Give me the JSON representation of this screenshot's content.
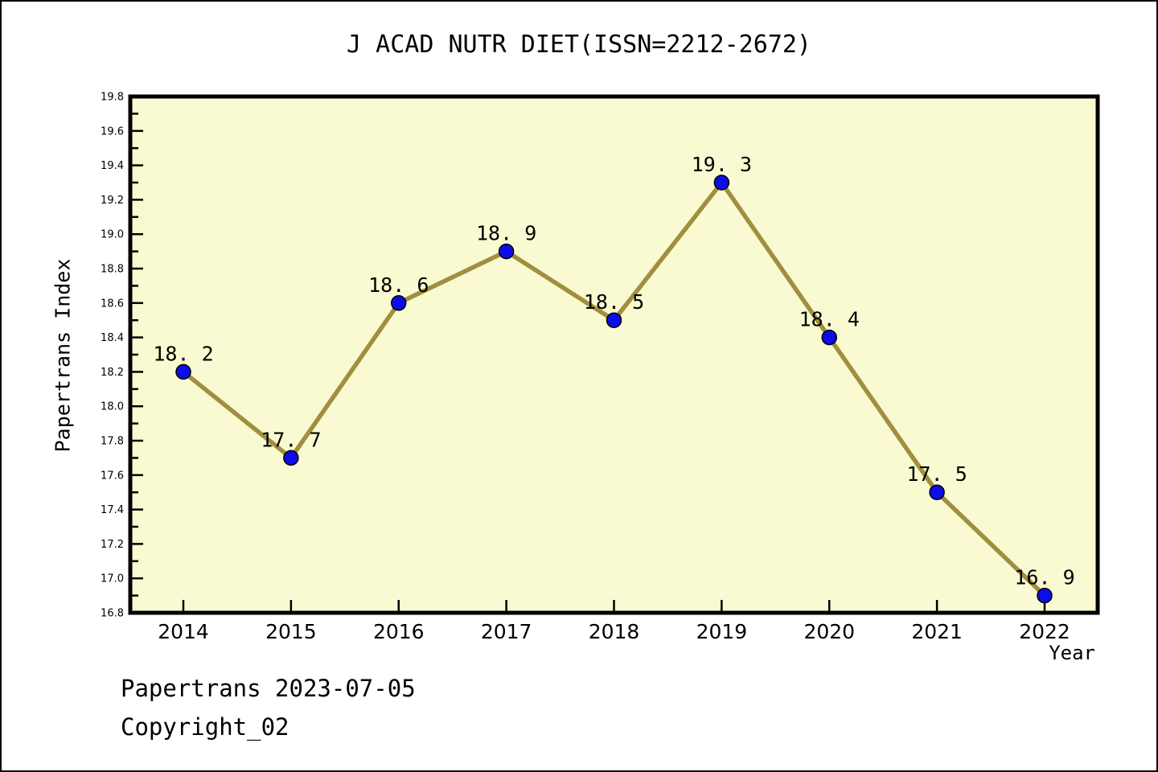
{
  "page": {
    "title": "J ACAD NUTR DIET(ISSN=2212-2672)",
    "footer_line1": "Papertrans 2023-07-05",
    "footer_line2": "Copyright_02"
  },
  "chart_data": {
    "type": "line",
    "title": "J ACAD NUTR DIET(ISSN=2212-2672)",
    "xlabel": "Year",
    "ylabel": "Papertrans Index",
    "categories": [
      2014,
      2015,
      2016,
      2017,
      2018,
      2019,
      2020,
      2021,
      2022
    ],
    "values": [
      18.2,
      17.7,
      18.6,
      18.9,
      18.5,
      19.3,
      18.4,
      17.5,
      16.9
    ],
    "point_labels": [
      "18. 2",
      "17. 7",
      "18. 6",
      "18. 9",
      "18. 5",
      "19. 3",
      "18. 4",
      "17. 5",
      "16. 9"
    ],
    "ylim": [
      16.8,
      19.8
    ],
    "ytick_major_step": 0.2,
    "ytick_minor_step": 0.1,
    "grid": false,
    "legend": "none",
    "colors": {
      "plot_background": "#fafad2",
      "line": "#a08f3e",
      "marker_fill": "#0d0de8",
      "marker_edge": "#000000",
      "spine": "#000000",
      "text": "#000000"
    }
  }
}
